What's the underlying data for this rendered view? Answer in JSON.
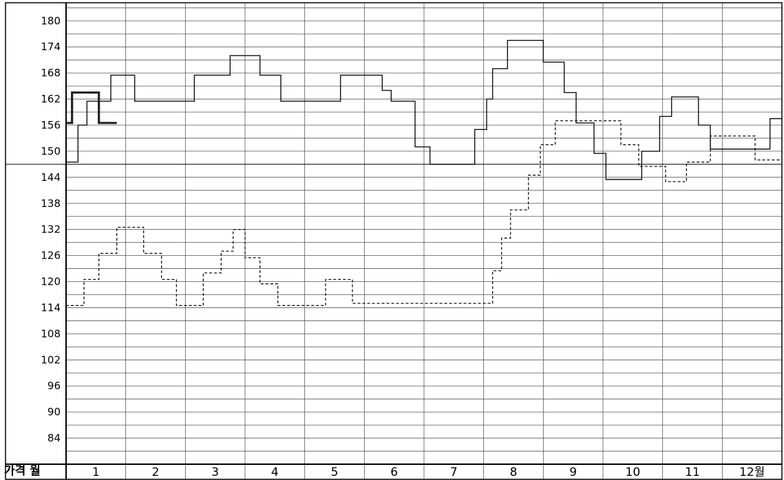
{
  "chart_data": {
    "type": "line",
    "title": "",
    "xlabel": "",
    "ylabel": "",
    "corner_label": "가격 월",
    "x_axis_unit": "month",
    "ylim": [
      78,
      184
    ],
    "xlim": [
      0,
      12
    ],
    "y_ticks": [
      180,
      174,
      168,
      162,
      156,
      150,
      144,
      138,
      132,
      126,
      120,
      114,
      108,
      102,
      96,
      90,
      84
    ],
    "x_tick_labels": [
      "1",
      "2",
      "3",
      "4",
      "5",
      "6",
      "7",
      "8",
      "9",
      "10",
      "11",
      "12월"
    ],
    "grid": {
      "horizontal_step": 3,
      "vertical": "monthly"
    },
    "reference_line": {
      "y": 147
    },
    "series": [
      {
        "style": "thin-solid",
        "points": [
          [
            0,
            147.5
          ],
          [
            0.2,
            156
          ],
          [
            0.35,
            161.5
          ],
          [
            0.75,
            167.5
          ],
          [
            1.15,
            161.5
          ],
          [
            2.15,
            167.5
          ],
          [
            2.75,
            172
          ],
          [
            3.25,
            167.5
          ],
          [
            3.6,
            161.5
          ],
          [
            4.6,
            167.5
          ],
          [
            5.3,
            164
          ],
          [
            5.45,
            161.5
          ],
          [
            5.85,
            151
          ],
          [
            6.1,
            147
          ],
          [
            6.85,
            155
          ],
          [
            7.05,
            162
          ],
          [
            7.15,
            169
          ],
          [
            7.4,
            175.5
          ],
          [
            8.0,
            170.5
          ],
          [
            8.35,
            163.5
          ],
          [
            8.55,
            156.5
          ],
          [
            8.85,
            149.5
          ],
          [
            9.05,
            143.5
          ],
          [
            9.65,
            150
          ],
          [
            9.95,
            158
          ],
          [
            10.15,
            162.5
          ],
          [
            10.6,
            156
          ],
          [
            10.8,
            150.5
          ],
          [
            11.8,
            157.5
          ],
          [
            12.0,
            157.5
          ]
        ]
      },
      {
        "style": "dashed",
        "points": [
          [
            0,
            114.5
          ],
          [
            0.3,
            120.5
          ],
          [
            0.55,
            126.5
          ],
          [
            0.85,
            132.5
          ],
          [
            1.3,
            126.5
          ],
          [
            1.6,
            120.5
          ],
          [
            1.85,
            114.5
          ],
          [
            2.3,
            122
          ],
          [
            2.6,
            127
          ],
          [
            2.8,
            132
          ],
          [
            3.0,
            125.5
          ],
          [
            3.25,
            119.5
          ],
          [
            3.55,
            114.5
          ],
          [
            4.35,
            120.5
          ],
          [
            4.8,
            115
          ],
          [
            7.15,
            122.5
          ],
          [
            7.3,
            130
          ],
          [
            7.45,
            136.5
          ],
          [
            7.75,
            144.5
          ],
          [
            7.95,
            151.5
          ],
          [
            8.2,
            157
          ],
          [
            9.3,
            151.5
          ],
          [
            9.6,
            146.5
          ],
          [
            10.05,
            143
          ],
          [
            10.4,
            147.5
          ],
          [
            10.8,
            153.5
          ],
          [
            11.55,
            148
          ],
          [
            12.0,
            148
          ]
        ]
      },
      {
        "style": "thick-solid",
        "points": [
          [
            0,
            156.5
          ],
          [
            0.1,
            163.5
          ],
          [
            0.55,
            156.5
          ],
          [
            0.85,
            156.5
          ]
        ]
      }
    ]
  }
}
